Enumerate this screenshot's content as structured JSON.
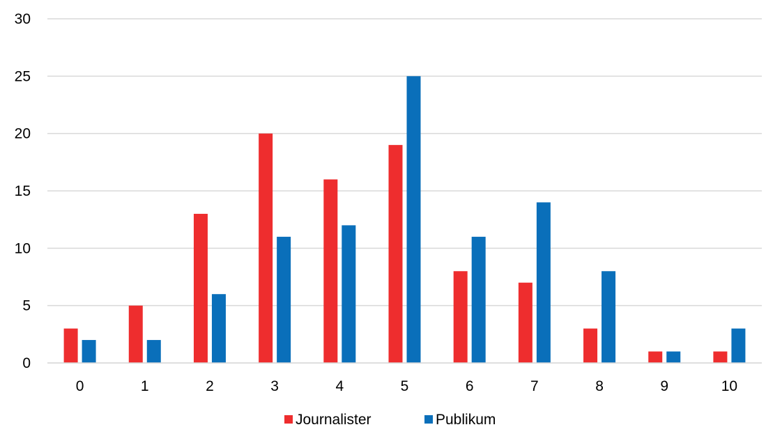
{
  "chart_data": {
    "type": "bar",
    "categories": [
      "0",
      "1",
      "2",
      "3",
      "4",
      "5",
      "6",
      "7",
      "8",
      "9",
      "10"
    ],
    "series": [
      {
        "name": "Journalister",
        "color": "#ee2d2e",
        "values": [
          3,
          5,
          13,
          20,
          16,
          19,
          8,
          7,
          3,
          1,
          1
        ]
      },
      {
        "name": "Publikum",
        "color": "#0a6fba",
        "values": [
          2,
          2,
          6,
          11,
          12,
          25,
          11,
          14,
          8,
          1,
          3
        ]
      }
    ],
    "ylim": [
      0,
      30
    ],
    "yticks": [
      "0",
      "5",
      "10",
      "15",
      "20",
      "25",
      "30"
    ],
    "grid": true,
    "legend_position": "bottom-center",
    "gridline_color": "#d9d9d9"
  }
}
